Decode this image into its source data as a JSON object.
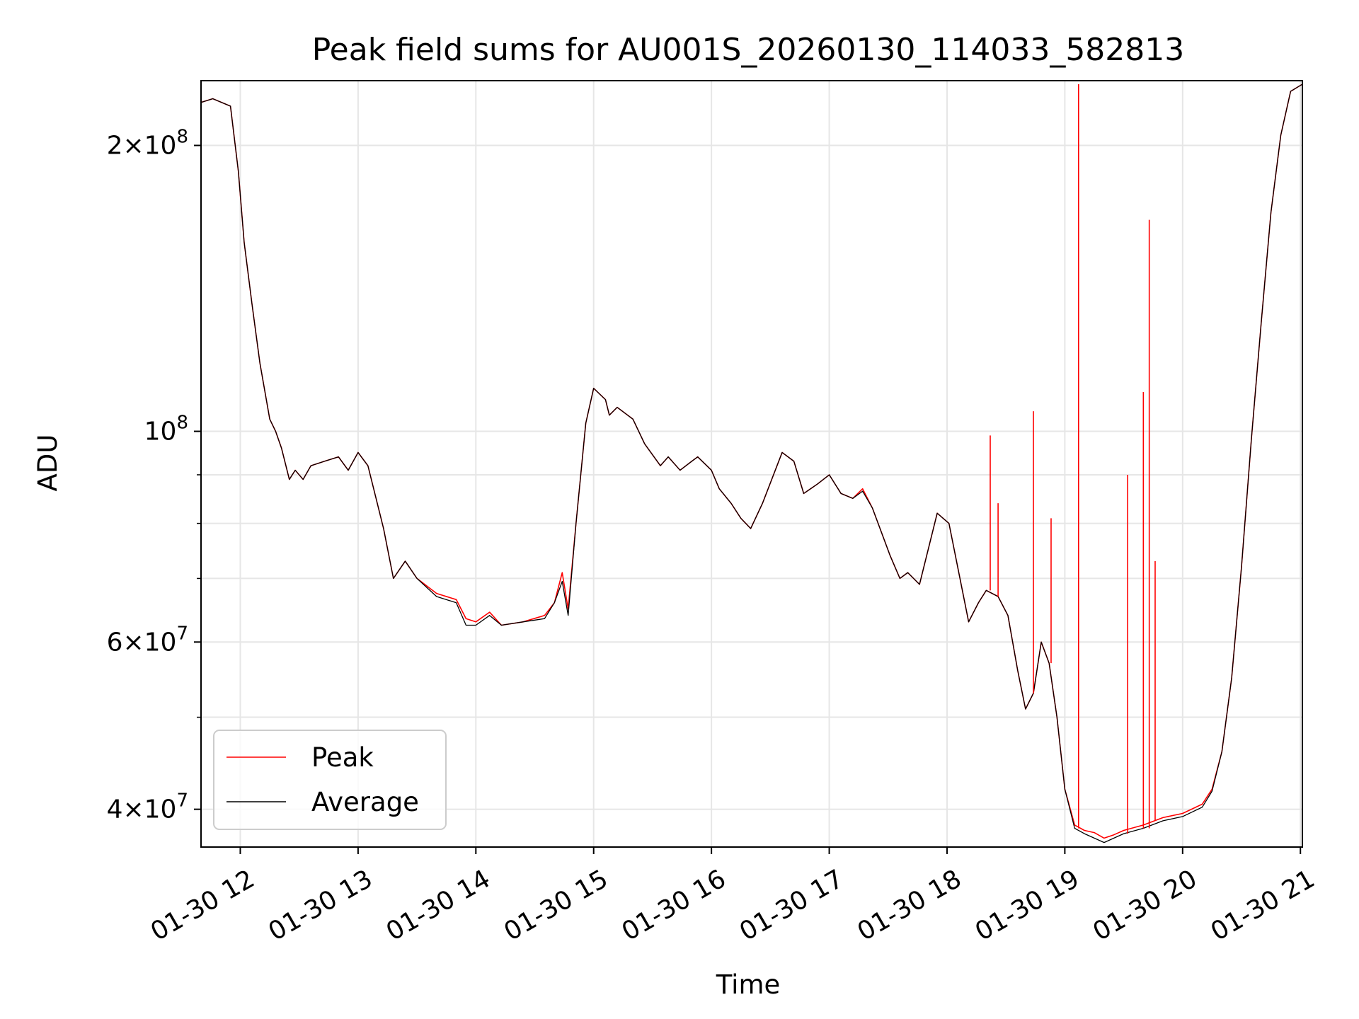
{
  "chart_data": {
    "type": "line",
    "title": "Peak field sums for AU001S_20260130_114033_582813",
    "xlabel": "Time",
    "ylabel": "ADU",
    "y_scale": "log",
    "grid": true,
    "legend_position": "lower-left",
    "xlim": [
      "2026-01-30 11:40",
      "2026-01-30 21:01"
    ],
    "ylim": [
      36500000,
      234000000
    ],
    "x_ticks": [
      {
        "value": "2026-01-30 12:00",
        "label": "01-30 12"
      },
      {
        "value": "2026-01-30 13:00",
        "label": "01-30 13"
      },
      {
        "value": "2026-01-30 14:00",
        "label": "01-30 14"
      },
      {
        "value": "2026-01-30 15:00",
        "label": "01-30 15"
      },
      {
        "value": "2026-01-30 16:00",
        "label": "01-30 16"
      },
      {
        "value": "2026-01-30 17:00",
        "label": "01-30 17"
      },
      {
        "value": "2026-01-30 18:00",
        "label": "01-30 18"
      },
      {
        "value": "2026-01-30 19:00",
        "label": "01-30 19"
      },
      {
        "value": "2026-01-30 20:00",
        "label": "01-30 20"
      },
      {
        "value": "2026-01-30 21:00",
        "label": "01-30 21"
      }
    ],
    "y_major_ticks": [
      {
        "value": 40000000,
        "mant": "4",
        "exp": "7"
      },
      {
        "value": 60000000,
        "mant": "6",
        "exp": "7"
      },
      {
        "value": 100000000,
        "mant": "",
        "exp": "8"
      },
      {
        "value": 200000000,
        "mant": "2",
        "exp": "8"
      }
    ],
    "y_minor_ticks": [
      50000000,
      70000000,
      80000000,
      90000000
    ],
    "series": [
      {
        "name": "Peak",
        "color": "#ff0000",
        "x": [
          "2026-01-30 11:40",
          "2026-01-30 11:46",
          "2026-01-30 11:55",
          "2026-01-30 11:59",
          "2026-01-30 12:02",
          "2026-01-30 12:06",
          "2026-01-30 12:10",
          "2026-01-30 12:15",
          "2026-01-30 12:18",
          "2026-01-30 12:21",
          "2026-01-30 12:25",
          "2026-01-30 12:28",
          "2026-01-30 12:32",
          "2026-01-30 12:36",
          "2026-01-30 12:43",
          "2026-01-30 12:50",
          "2026-01-30 12:55",
          "2026-01-30 13:00",
          "2026-01-30 13:05",
          "2026-01-30 13:13",
          "2026-01-30 13:18",
          "2026-01-30 13:24",
          "2026-01-30 13:30",
          "2026-01-30 13:40",
          "2026-01-30 13:50",
          "2026-01-30 13:55",
          "2026-01-30 14:00",
          "2026-01-30 14:07",
          "2026-01-30 14:13",
          "2026-01-30 14:24",
          "2026-01-30 14:35",
          "2026-01-30 14:40",
          "2026-01-30 14:44",
          "2026-01-30 14:47",
          "2026-01-30 14:51",
          "2026-01-30 14:56",
          "2026-01-30 15:00",
          "2026-01-30 15:06",
          "2026-01-30 15:08",
          "2026-01-30 15:12",
          "2026-01-30 15:20",
          "2026-01-30 15:26",
          "2026-01-30 15:34",
          "2026-01-30 15:38",
          "2026-01-30 15:44",
          "2026-01-30 15:50",
          "2026-01-30 15:53",
          "2026-01-30 16:00",
          "2026-01-30 16:04",
          "2026-01-30 16:10",
          "2026-01-30 16:15",
          "2026-01-30 16:20",
          "2026-01-30 16:26",
          "2026-01-30 16:36",
          "2026-01-30 16:42",
          "2026-01-30 16:47",
          "2026-01-30 16:54",
          "2026-01-30 17:00",
          "2026-01-30 17:06",
          "2026-01-30 17:12",
          "2026-01-30 17:17",
          "2026-01-30 17:22",
          "2026-01-30 17:31",
          "2026-01-30 17:36",
          "2026-01-30 17:40",
          "2026-01-30 17:46",
          "2026-01-30 17:55",
          "2026-01-30 18:01",
          "2026-01-30 18:06",
          "2026-01-30 18:11",
          "2026-01-30 18:16",
          "2026-01-30 18:20",
          "2026-01-30 18:26",
          "2026-01-30 18:31",
          "2026-01-30 18:36",
          "2026-01-30 18:40",
          "2026-01-30 18:44",
          "2026-01-30 18:48",
          "2026-01-30 18:52",
          "2026-01-30 18:56",
          "2026-01-30 19:00",
          "2026-01-30 19:05",
          "2026-01-30 19:10",
          "2026-01-30 19:15",
          "2026-01-30 19:20",
          "2026-01-30 19:25",
          "2026-01-30 19:30",
          "2026-01-30 19:40",
          "2026-01-30 19:50",
          "2026-01-30 20:00",
          "2026-01-30 20:10",
          "2026-01-30 20:15",
          "2026-01-30 20:20",
          "2026-01-30 20:25",
          "2026-01-30 20:30",
          "2026-01-30 20:35",
          "2026-01-30 20:40",
          "2026-01-30 20:45",
          "2026-01-30 20:50",
          "2026-01-30 20:55",
          "2026-01-30 21:01"
        ],
        "values": [
          222000000,
          224000000,
          220000000,
          188000000,
          158000000,
          136000000,
          118000000,
          103000000,
          100000000,
          96000000,
          89000000,
          91000000,
          89000000,
          92000000,
          93000000,
          94000000,
          91000000,
          95000000,
          92000000,
          79000000,
          70000000,
          73000000,
          70000000,
          67500000,
          66500000,
          63500000,
          63000000,
          64500000,
          62500000,
          63000000,
          64000000,
          66000000,
          71000000,
          65000000,
          80000000,
          102000000,
          111000000,
          108000000,
          104000000,
          106000000,
          103000000,
          97000000,
          92000000,
          94000000,
          91000000,
          93000000,
          94000000,
          91000000,
          87000000,
          84000000,
          81000000,
          79000000,
          84000000,
          95000000,
          93000000,
          86000000,
          88000000,
          90000000,
          86000000,
          85000000,
          87000000,
          83000000,
          74000000,
          70000000,
          71000000,
          69000000,
          82000000,
          80000000,
          71000000,
          63000000,
          66000000,
          68000000,
          67000000,
          64000000,
          56000000,
          51000000,
          53000000,
          60000000,
          57000000,
          50000000,
          42000000,
          38500000,
          38000000,
          37800000,
          37300000,
          37600000,
          38000000,
          38500000,
          39200000,
          39600000,
          40500000,
          42000000,
          46000000,
          55000000,
          72000000,
          98000000,
          130000000,
          170000000,
          205000000,
          228000000,
          232000000
        ]
      },
      {
        "name": "Average",
        "color": "#000000",
        "x": [
          "2026-01-30 11:40",
          "2026-01-30 11:46",
          "2026-01-30 11:55",
          "2026-01-30 11:59",
          "2026-01-30 12:02",
          "2026-01-30 12:06",
          "2026-01-30 12:10",
          "2026-01-30 12:15",
          "2026-01-30 12:18",
          "2026-01-30 12:21",
          "2026-01-30 12:25",
          "2026-01-30 12:28",
          "2026-01-30 12:32",
          "2026-01-30 12:36",
          "2026-01-30 12:43",
          "2026-01-30 12:50",
          "2026-01-30 12:55",
          "2026-01-30 13:00",
          "2026-01-30 13:05",
          "2026-01-30 13:13",
          "2026-01-30 13:18",
          "2026-01-30 13:24",
          "2026-01-30 13:30",
          "2026-01-30 13:40",
          "2026-01-30 13:50",
          "2026-01-30 13:55",
          "2026-01-30 14:00",
          "2026-01-30 14:07",
          "2026-01-30 14:13",
          "2026-01-30 14:24",
          "2026-01-30 14:35",
          "2026-01-30 14:40",
          "2026-01-30 14:44",
          "2026-01-30 14:47",
          "2026-01-30 14:51",
          "2026-01-30 14:56",
          "2026-01-30 15:00",
          "2026-01-30 15:06",
          "2026-01-30 15:08",
          "2026-01-30 15:12",
          "2026-01-30 15:20",
          "2026-01-30 15:26",
          "2026-01-30 15:34",
          "2026-01-30 15:38",
          "2026-01-30 15:44",
          "2026-01-30 15:50",
          "2026-01-30 15:53",
          "2026-01-30 16:00",
          "2026-01-30 16:04",
          "2026-01-30 16:10",
          "2026-01-30 16:15",
          "2026-01-30 16:20",
          "2026-01-30 16:26",
          "2026-01-30 16:36",
          "2026-01-30 16:42",
          "2026-01-30 16:47",
          "2026-01-30 16:54",
          "2026-01-30 17:00",
          "2026-01-30 17:06",
          "2026-01-30 17:12",
          "2026-01-30 17:17",
          "2026-01-30 17:22",
          "2026-01-30 17:31",
          "2026-01-30 17:36",
          "2026-01-30 17:40",
          "2026-01-30 17:46",
          "2026-01-30 17:55",
          "2026-01-30 18:01",
          "2026-01-30 18:06",
          "2026-01-30 18:11",
          "2026-01-30 18:16",
          "2026-01-30 18:20",
          "2026-01-30 18:26",
          "2026-01-30 18:31",
          "2026-01-30 18:36",
          "2026-01-30 18:40",
          "2026-01-30 18:44",
          "2026-01-30 18:48",
          "2026-01-30 18:52",
          "2026-01-30 18:56",
          "2026-01-30 19:00",
          "2026-01-30 19:05",
          "2026-01-30 19:10",
          "2026-01-30 19:15",
          "2026-01-30 19:20",
          "2026-01-30 19:25",
          "2026-01-30 19:30",
          "2026-01-30 19:40",
          "2026-01-30 19:50",
          "2026-01-30 20:00",
          "2026-01-30 20:10",
          "2026-01-30 20:15",
          "2026-01-30 20:20",
          "2026-01-30 20:25",
          "2026-01-30 20:30",
          "2026-01-30 20:35",
          "2026-01-30 20:40",
          "2026-01-30 20:45",
          "2026-01-30 20:50",
          "2026-01-30 20:55",
          "2026-01-30 21:01"
        ],
        "values": [
          222000000,
          224000000,
          220000000,
          188000000,
          158000000,
          136000000,
          118000000,
          103000000,
          100000000,
          96000000,
          89000000,
          91000000,
          89000000,
          92000000,
          93000000,
          94000000,
          91000000,
          95000000,
          92000000,
          79000000,
          70000000,
          73000000,
          70000000,
          67000000,
          66000000,
          62500000,
          62500000,
          64000000,
          62500000,
          63000000,
          63500000,
          66000000,
          69500000,
          64000000,
          80000000,
          102000000,
          111000000,
          108000000,
          104000000,
          106000000,
          103000000,
          97000000,
          92000000,
          94000000,
          91000000,
          93000000,
          94000000,
          91000000,
          87000000,
          84000000,
          81000000,
          79000000,
          84000000,
          95000000,
          93000000,
          86000000,
          88000000,
          90000000,
          86000000,
          85000000,
          86500000,
          83000000,
          74000000,
          70000000,
          71000000,
          69000000,
          82000000,
          80000000,
          71000000,
          63000000,
          66000000,
          68000000,
          67000000,
          64000000,
          56000000,
          51000000,
          53000000,
          60000000,
          57000000,
          50000000,
          42000000,
          38200000,
          37700000,
          37300000,
          36900000,
          37300000,
          37700000,
          38200000,
          38900000,
          39300000,
          40200000,
          41800000,
          46000000,
          55000000,
          72000000,
          98000000,
          130000000,
          170000000,
          205000000,
          228000000,
          232000000
        ]
      }
    ],
    "peak_spikes": [
      {
        "x": "2026-01-30 18:22",
        "value": 99000000
      },
      {
        "x": "2026-01-30 18:26",
        "value": 84000000
      },
      {
        "x": "2026-01-30 18:44",
        "value": 105000000
      },
      {
        "x": "2026-01-30 18:53",
        "value": 81000000
      },
      {
        "x": "2026-01-30 19:07",
        "value": 232000000
      },
      {
        "x": "2026-01-30 19:32",
        "value": 90000000
      },
      {
        "x": "2026-01-30 19:40",
        "value": 110000000
      },
      {
        "x": "2026-01-30 19:43",
        "value": 167000000
      },
      {
        "x": "2026-01-30 19:46",
        "value": 73000000
      }
    ]
  }
}
